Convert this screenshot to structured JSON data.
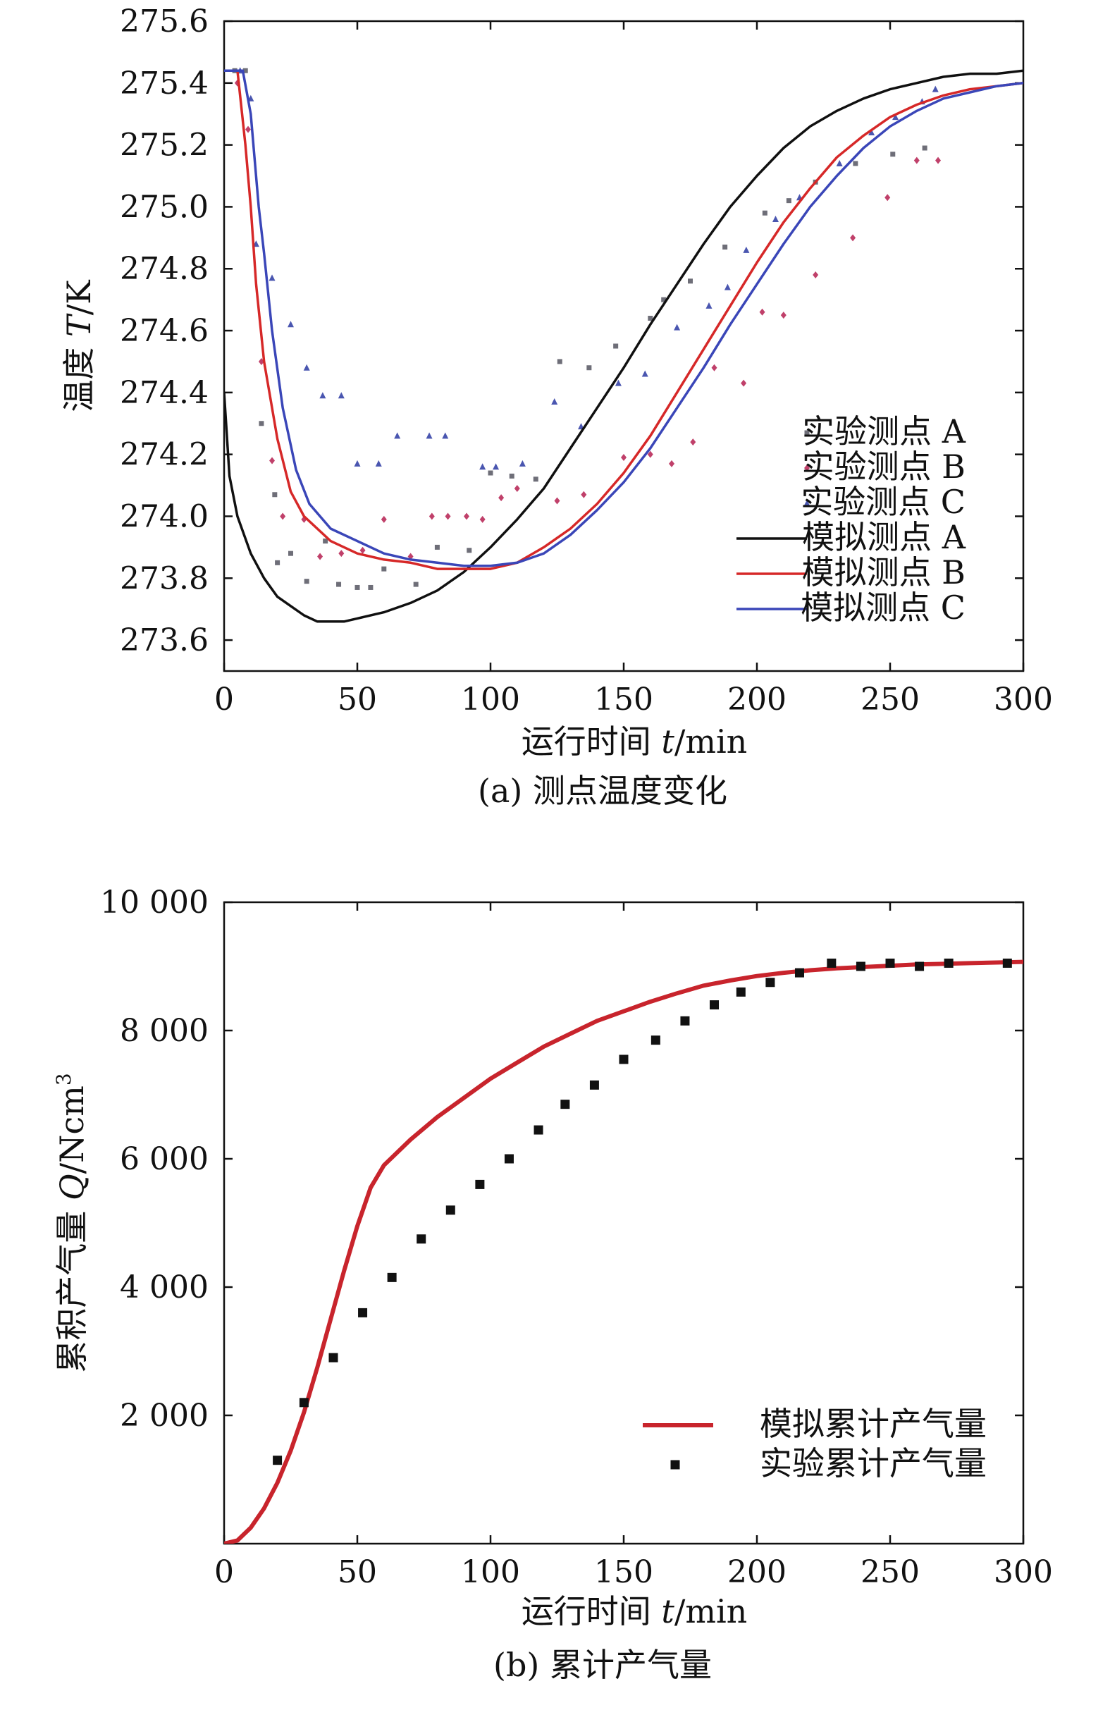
{
  "chart_data": [
    {
      "type": "line",
      "caption": "(a) 测点温度变化",
      "xlabel_prefix": "运行时间 ",
      "xlabel_var": "t",
      "xlabel_unit": "/min",
      "ylabel_prefix": "温度 ",
      "ylabel_var": "T",
      "ylabel_unit": "/K",
      "xlim": [
        0,
        300
      ],
      "ylim": [
        273.5,
        275.6
      ],
      "xticks": [
        "0",
        "50",
        "100",
        "150",
        "200",
        "250",
        "300"
      ],
      "yticks": [
        "273.6",
        "273.8",
        "274.0",
        "274.2",
        "274.4",
        "274.6",
        "274.8",
        "275.0",
        "275.2",
        "275.4",
        "275.6"
      ],
      "legend_position": "bottom-right",
      "grid": false,
      "series": [
        {
          "name": "实验测点 A",
          "kind": "scatter",
          "marker": "square",
          "color": "#6e6e78",
          "x": [
            4,
            8,
            14,
            19,
            20,
            25,
            31,
            38,
            43,
            50,
            55,
            60,
            72,
            80,
            92,
            100,
            108,
            117,
            126,
            137,
            147,
            160,
            165,
            175,
            188,
            203,
            212,
            222,
            237,
            251,
            263
          ],
          "y": [
            275.44,
            275.44,
            274.3,
            274.07,
            273.85,
            273.88,
            273.79,
            273.92,
            273.78,
            273.77,
            273.77,
            273.83,
            273.78,
            273.9,
            273.89,
            274.14,
            274.13,
            274.12,
            274.5,
            274.48,
            274.55,
            274.64,
            274.7,
            274.76,
            274.87,
            274.98,
            275.02,
            275.08,
            275.14,
            275.17,
            275.19
          ]
        },
        {
          "name": "实验测点 B",
          "kind": "scatter",
          "marker": "diamond",
          "color": "#c0406a",
          "x": [
            5,
            9,
            14,
            18,
            22,
            30,
            36,
            44,
            52,
            60,
            70,
            78,
            84,
            91,
            97,
            104,
            110,
            125,
            135,
            150,
            160,
            168,
            176,
            184,
            195,
            202,
            210,
            222,
            236,
            249,
            260,
            268
          ],
          "y": [
            275.4,
            275.25,
            274.5,
            274.18,
            274.0,
            273.99,
            273.87,
            273.88,
            273.89,
            273.99,
            273.87,
            274.0,
            274.0,
            274.0,
            273.99,
            274.06,
            274.09,
            274.05,
            274.07,
            274.19,
            274.2,
            274.17,
            274.24,
            274.48,
            274.43,
            274.66,
            274.65,
            274.78,
            274.9,
            275.03,
            275.15,
            275.15
          ]
        },
        {
          "name": "实验测点 C",
          "kind": "scatter",
          "marker": "triangle",
          "color": "#4a56b0",
          "x": [
            6,
            10,
            12,
            18,
            25,
            31,
            37,
            44,
            50,
            58,
            65,
            77,
            83,
            97,
            102,
            112,
            124,
            134,
            148,
            158,
            170,
            182,
            189,
            196,
            207,
            216,
            231,
            243,
            252,
            262,
            267
          ],
          "y": [
            275.44,
            275.35,
            274.88,
            274.77,
            274.62,
            274.48,
            274.39,
            274.39,
            274.17,
            274.17,
            274.26,
            274.26,
            274.26,
            274.16,
            274.16,
            274.17,
            274.37,
            274.29,
            274.43,
            274.46,
            274.61,
            274.68,
            274.74,
            274.86,
            274.96,
            275.03,
            275.14,
            275.24,
            275.29,
            275.34,
            275.38
          ]
        },
        {
          "name": "模拟测点 A",
          "kind": "line",
          "color": "#101010",
          "x": [
            0,
            2,
            5,
            10,
            15,
            20,
            25,
            30,
            35,
            40,
            45,
            50,
            60,
            70,
            80,
            90,
            100,
            110,
            120,
            130,
            140,
            150,
            160,
            170,
            180,
            190,
            200,
            210,
            220,
            230,
            240,
            250,
            260,
            270,
            280,
            290,
            300
          ],
          "y": [
            274.4,
            274.13,
            274.0,
            273.88,
            273.8,
            273.74,
            273.71,
            273.68,
            273.66,
            273.66,
            273.66,
            273.67,
            273.69,
            273.72,
            273.76,
            273.82,
            273.9,
            273.99,
            274.09,
            274.22,
            274.35,
            274.48,
            274.62,
            274.75,
            274.88,
            275.0,
            275.1,
            275.19,
            275.26,
            275.31,
            275.35,
            275.38,
            275.4,
            275.42,
            275.43,
            275.43,
            275.44
          ]
        },
        {
          "name": "模拟测点 B",
          "kind": "line",
          "color": "#d62828",
          "x": [
            0,
            5,
            8,
            10,
            12,
            15,
            20,
            25,
            30,
            40,
            50,
            60,
            70,
            80,
            90,
            100,
            110,
            120,
            130,
            140,
            150,
            160,
            170,
            180,
            190,
            200,
            210,
            220,
            230,
            240,
            250,
            260,
            270,
            280,
            290,
            300
          ],
          "y": [
            275.44,
            275.44,
            275.2,
            275.0,
            274.75,
            274.5,
            274.25,
            274.08,
            274.0,
            273.92,
            273.88,
            273.86,
            273.85,
            273.83,
            273.83,
            273.83,
            273.85,
            273.9,
            273.96,
            274.04,
            274.14,
            274.26,
            274.4,
            274.54,
            274.68,
            274.82,
            274.95,
            275.06,
            275.16,
            275.23,
            275.29,
            275.33,
            275.36,
            275.38,
            275.39,
            275.4
          ]
        },
        {
          "name": "模拟测点 C",
          "kind": "line",
          "color": "#3a46b8",
          "x": [
            0,
            7,
            10,
            13,
            15,
            18,
            22,
            27,
            32,
            40,
            50,
            60,
            70,
            80,
            90,
            100,
            110,
            120,
            130,
            140,
            150,
            160,
            170,
            180,
            190,
            200,
            210,
            220,
            230,
            240,
            250,
            260,
            270,
            280,
            290,
            300
          ],
          "y": [
            275.44,
            275.44,
            275.3,
            275.0,
            274.85,
            274.6,
            274.35,
            274.15,
            274.04,
            273.96,
            273.92,
            273.88,
            273.86,
            273.85,
            273.84,
            273.84,
            273.85,
            273.88,
            273.94,
            274.02,
            274.11,
            274.22,
            274.35,
            274.48,
            274.62,
            274.75,
            274.88,
            275.0,
            275.1,
            275.19,
            275.26,
            275.31,
            275.35,
            275.37,
            275.39,
            275.4
          ]
        }
      ]
    },
    {
      "type": "line",
      "caption": "(b) 累计产气量",
      "xlabel_prefix": "运行时间 ",
      "xlabel_var": "t",
      "xlabel_unit": "/min",
      "ylabel_prefix": "累积产气量 ",
      "ylabel_var": "Q",
      "ylabel_unit": "/Ncm",
      "ylabel_sup": "3",
      "xlim": [
        0,
        300
      ],
      "ylim": [
        0,
        10000
      ],
      "xticks": [
        "0",
        "50",
        "100",
        "150",
        "200",
        "250",
        "300"
      ],
      "yticks": [
        "2 000",
        "4 000",
        "6 000",
        "8 000",
        "10 000"
      ],
      "legend_position": "bottom-right",
      "grid": false,
      "series": [
        {
          "name": "模拟累计产气量",
          "kind": "line",
          "color": "#c8242c",
          "x": [
            0,
            5,
            10,
            15,
            20,
            25,
            30,
            35,
            40,
            45,
            50,
            55,
            60,
            70,
            80,
            90,
            100,
            110,
            120,
            130,
            140,
            150,
            160,
            170,
            180,
            190,
            200,
            210,
            220,
            230,
            240,
            250,
            260,
            270,
            280,
            290,
            300
          ],
          "y": [
            0,
            50,
            250,
            550,
            950,
            1450,
            2050,
            2750,
            3500,
            4250,
            4950,
            5550,
            5900,
            6300,
            6650,
            6950,
            7250,
            7500,
            7750,
            7950,
            8150,
            8300,
            8450,
            8580,
            8700,
            8780,
            8850,
            8900,
            8940,
            8970,
            8990,
            9010,
            9030,
            9040,
            9050,
            9060,
            9070
          ]
        },
        {
          "name": "实验累计产气量",
          "kind": "scatter",
          "marker": "square",
          "color": "#111111",
          "x": [
            20,
            30,
            41,
            52,
            63,
            74,
            85,
            96,
            107,
            118,
            128,
            139,
            150,
            162,
            173,
            184,
            194,
            205,
            216,
            228,
            239,
            250,
            261,
            272,
            294
          ],
          "y": [
            1300,
            2200,
            2900,
            3600,
            4150,
            4750,
            5200,
            5600,
            6000,
            6450,
            6850,
            7150,
            7550,
            7850,
            8150,
            8400,
            8600,
            8750,
            8900,
            9050,
            9000,
            9050,
            9000,
            9050,
            9050
          ]
        }
      ]
    }
  ]
}
